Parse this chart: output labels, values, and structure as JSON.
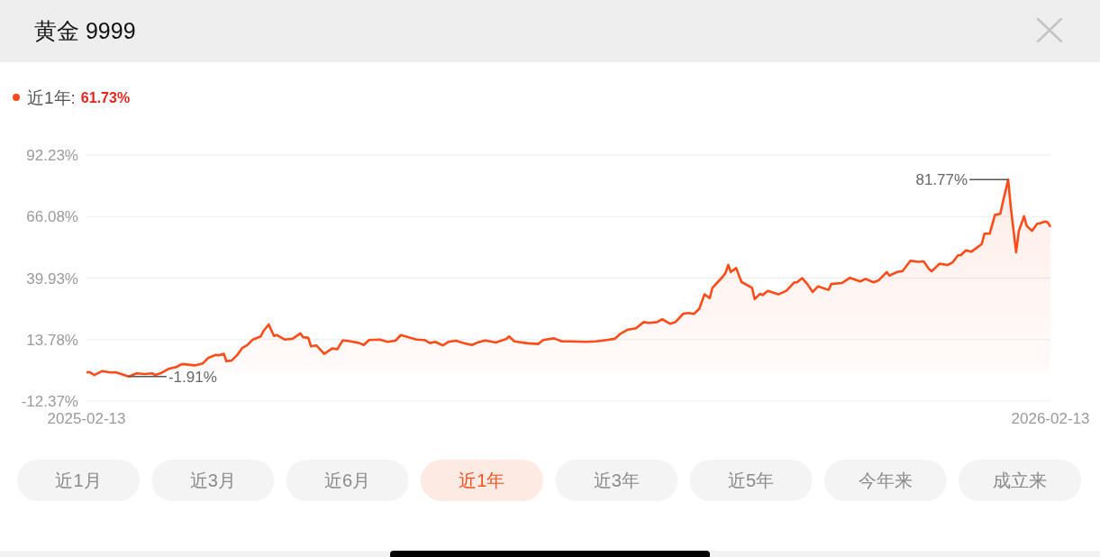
{
  "chart_data": {
    "type": "area",
    "title": "黄金 9999",
    "x": [
      "2025-02-13",
      "2025-02-14",
      "2025-02-16",
      "2025-02-19",
      "2025-02-22",
      "2025-02-24",
      "2025-03-01",
      "2025-03-04",
      "2025-03-07",
      "2025-03-10",
      "2025-03-11",
      "2025-03-13",
      "2025-03-16",
      "2025-03-19",
      "2025-03-21",
      "2025-03-22",
      "2025-03-26",
      "2025-03-29",
      "2025-03-31",
      "2025-04-03",
      "2025-04-04",
      "2025-04-06",
      "2025-04-07",
      "2025-04-09",
      "2025-04-11",
      "2025-04-13",
      "2025-04-15",
      "2025-04-17",
      "2025-04-20",
      "2025-04-21",
      "2025-04-23",
      "2025-04-25",
      "2025-04-26",
      "2025-04-29",
      "2025-05-02",
      "2025-05-05",
      "2025-05-06",
      "2025-05-08",
      "2025-05-09",
      "2025-05-11",
      "2025-05-12",
      "2025-05-14",
      "2025-05-17",
      "2025-05-19",
      "2025-05-21",
      "2025-05-23",
      "2025-05-27",
      "2025-05-29",
      "2025-05-31",
      "2025-06-04",
      "2025-06-07",
      "2025-06-10",
      "2025-06-12",
      "2025-06-15",
      "2025-06-18",
      "2025-06-21",
      "2025-06-23",
      "2025-06-25",
      "2025-06-28",
      "2025-06-30",
      "2025-07-03",
      "2025-07-06",
      "2025-07-09",
      "2025-07-11",
      "2025-07-14",
      "2025-07-18",
      "2025-07-22",
      "2025-07-23",
      "2025-07-25",
      "2025-07-30",
      "2025-08-03",
      "2025-08-05",
      "2025-08-09",
      "2025-08-12",
      "2025-08-15",
      "2025-08-21",
      "2025-08-25",
      "2025-08-29",
      "2025-09-01",
      "2025-09-03",
      "2025-09-06",
      "2025-09-09",
      "2025-09-12",
      "2025-09-14",
      "2025-09-17",
      "2025-09-19",
      "2025-09-22",
      "2025-09-24",
      "2025-09-27",
      "2025-09-29",
      "2025-10-01",
      "2025-10-03",
      "2025-10-05",
      "2025-10-07",
      "2025-10-08",
      "2025-10-12",
      "2025-10-13",
      "2025-10-14",
      "2025-10-15",
      "2025-10-17",
      "2025-10-19",
      "2025-10-23",
      "2025-10-24",
      "2025-10-26",
      "2025-10-27",
      "2025-10-29",
      "2025-11-02",
      "2025-11-05",
      "2025-11-08",
      "2025-11-09",
      "2025-11-11",
      "2025-11-13",
      "2025-11-15",
      "2025-11-17",
      "2025-11-21",
      "2025-11-22",
      "2025-11-26",
      "2025-11-29",
      "2025-12-03",
      "2025-12-05",
      "2025-12-08",
      "2025-12-10",
      "2025-12-13",
      "2025-12-14",
      "2025-12-17",
      "2025-12-19",
      "2025-12-22",
      "2025-12-25",
      "2025-12-27",
      "2025-12-29",
      "2025-12-30",
      "2026-01-02",
      "2026-01-05",
      "2026-01-07",
      "2026-01-09",
      "2026-01-10",
      "2026-01-12",
      "2026-01-14",
      "2026-01-18",
      "2026-01-19",
      "2026-01-21",
      "2026-01-23",
      "2026-01-25",
      "2026-01-26",
      "2026-01-28",
      "2026-01-29",
      "2026-01-31",
      "2026-02-01",
      "2026-02-03",
      "2026-02-04",
      "2026-02-06",
      "2026-02-08",
      "2026-02-09",
      "2026-02-11",
      "2026-02-12",
      "2026-02-13"
    ],
    "series": [
      {
        "name": "近1年:",
        "color": "#fe4b17",
        "values": [
          -0.2,
          0.0,
          -1.3,
          0.4,
          -0.2,
          -0.1,
          -1.91,
          -0.6,
          -0.9,
          -0.6,
          -1.3,
          -0.6,
          1.3,
          2.1,
          3.3,
          3.3,
          2.8,
          3.6,
          5.9,
          7.3,
          7.1,
          7.7,
          4.6,
          4.9,
          7.1,
          10.2,
          11.5,
          13.8,
          15.1,
          17.4,
          20.2,
          15.3,
          15.7,
          13.8,
          14.1,
          16.4,
          14.8,
          14.5,
          10.9,
          11.3,
          10.2,
          7.7,
          10.0,
          9.7,
          13.4,
          13.2,
          12.4,
          11.5,
          13.6,
          13.8,
          12.8,
          13.3,
          15.7,
          14.7,
          13.8,
          13.6,
          12.3,
          12.8,
          11.3,
          12.8,
          13.3,
          12.2,
          11.5,
          12.5,
          13.4,
          12.5,
          14.1,
          15.1,
          13.0,
          12.2,
          11.9,
          13.6,
          14.3,
          13.0,
          13.0,
          12.8,
          13.0,
          13.6,
          14.1,
          16.1,
          18.0,
          18.6,
          21.2,
          20.9,
          21.2,
          22.4,
          20.5,
          21.2,
          24.8,
          25.1,
          24.7,
          26.8,
          33.0,
          31.4,
          35.8,
          40.6,
          42.2,
          45.5,
          42.5,
          44.2,
          38.3,
          35.8,
          31.0,
          33.2,
          32.7,
          34.5,
          33.0,
          34.5,
          38.1,
          38.1,
          39.9,
          37.3,
          34.0,
          36.4,
          34.9,
          37.4,
          37.8,
          40.0,
          38.5,
          39.6,
          38.1,
          39.0,
          42.5,
          41.0,
          42.5,
          42.9,
          47.3,
          46.8,
          47.0,
          43.8,
          42.8,
          46.0,
          45.5,
          46.6,
          49.6,
          49.6,
          51.7,
          51.1,
          54.4,
          58.8,
          58.8,
          66.8,
          67.2,
          72.3,
          81.77,
          70.0,
          50.9,
          59.8,
          66.2,
          62.1,
          60.0,
          63.0,
          63.2,
          64.0,
          63.6,
          61.73
        ]
      }
    ],
    "xlim": [
      "2025-02-13",
      "2026-02-13"
    ],
    "xticks": [
      "2025-02-13",
      "2026-02-13"
    ],
    "ylim": [
      -12.37,
      92.23
    ],
    "yticks": [
      {
        "value": -12.37,
        "label": "-12.37%"
      },
      {
        "value": 13.78,
        "label": "13.78%"
      },
      {
        "value": 39.93,
        "label": "39.93%"
      },
      {
        "value": 66.08,
        "label": "66.08%"
      },
      {
        "value": 92.23,
        "label": "92.23%"
      }
    ],
    "grid": "y",
    "legend": "top left",
    "annotations": [
      {
        "text": "-1.91%",
        "x": "2025-03-01",
        "y": -1.91
      },
      {
        "text": "81.77%",
        "x": "2026-01-28",
        "y": 81.77
      },
      "61.73%",
      "近1月",
      "近3月",
      "近6月",
      "近1年",
      "近3年",
      "近5年",
      "今年来",
      "成立来"
    ]
  }
}
